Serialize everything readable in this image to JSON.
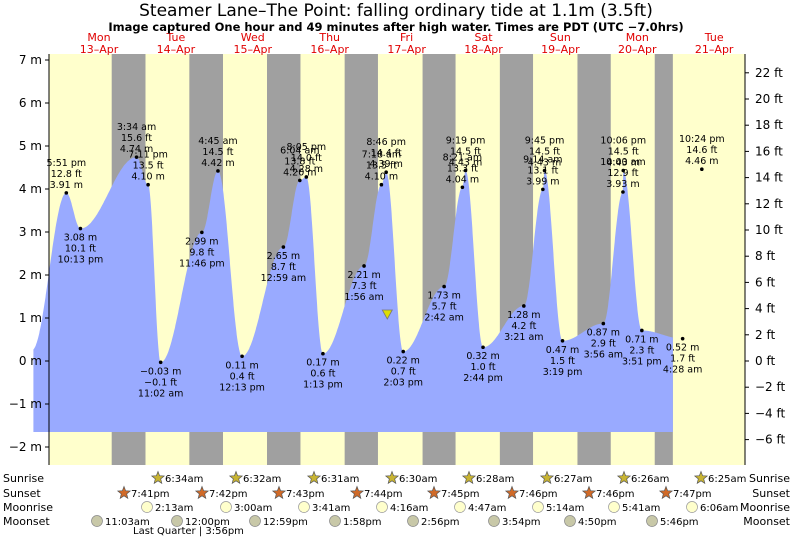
{
  "header": {
    "title": "Steamer Lane–The Point: falling  ordinary tide at 1.1m (3.5ft)",
    "subtitle": "Image captured One hour and 49 minutes after high water. Times are PDT (UTC −7.0hrs)"
  },
  "colors": {
    "day_bg": "#ffffcc",
    "night_bg": "#a0a0a0",
    "tide_fill": "#99aaff",
    "day_label": "#e00000",
    "current_marker": "#dddd00"
  },
  "chart_data": {
    "type": "area",
    "title": "Steamer Lane–The Point: falling  ordinary tide at 1.1m (3.5ft)",
    "x_range_days": [
      -0.18,
      8.06
    ],
    "ylim_m": [
      -2.3,
      7.3
    ],
    "ylim_ft": [
      -7.5,
      24
    ],
    "y_ticks_m": [
      -2,
      -1,
      0,
      1,
      2,
      3,
      4,
      5,
      6,
      7
    ],
    "y_tick_labels_m": [
      "−2 m",
      "−1 m",
      "0 m",
      "1 m",
      "2 m",
      "3 m",
      "4 m",
      "5 m",
      "6 m",
      "7 m"
    ],
    "y_ticks_ft": [
      -6,
      -4,
      -2,
      0,
      2,
      4,
      6,
      8,
      10,
      12,
      14,
      16,
      18,
      20,
      22
    ],
    "y_tick_labels_ft": [
      "−6 ft",
      "−4 ft",
      "−2 ft",
      "0 ft",
      "2 ft",
      "4 ft",
      "6 ft",
      "8 ft",
      "10 ft",
      "12 ft",
      "14 ft",
      "16 ft",
      "18 ft",
      "20 ft",
      "22 ft"
    ],
    "grid": false,
    "days": [
      {
        "dow": "Mon",
        "date": "13–Apr"
      },
      {
        "dow": "Tue",
        "date": "14–Apr"
      },
      {
        "dow": "Wed",
        "date": "15–Apr"
      },
      {
        "dow": "Thu",
        "date": "16–Apr"
      },
      {
        "dow": "Fri",
        "date": "17–Apr"
      },
      {
        "dow": "Sat",
        "date": "18–Apr"
      },
      {
        "dow": "Sun",
        "date": "19–Apr"
      },
      {
        "dow": "Mon",
        "date": "20–Apr"
      },
      {
        "dow": "Tue",
        "date": "21–Apr"
      }
    ],
    "nights": [
      {
        "start": 0.8285,
        "end": 1.264
      },
      {
        "start": 1.829,
        "end": 2.2628
      },
      {
        "start": 2.8299,
        "end": 3.2611
      },
      {
        "start": 3.8306,
        "end": 4.2597
      },
      {
        "start": 4.8347,
        "end": 5.2597
      },
      {
        "start": 5.8306,
        "end": 6.2583
      },
      {
        "start": 6.8306,
        "end": 7.2597
      },
      {
        "start": 7.8264,
        "end": 8.06
      }
    ],
    "extrema": [
      {
        "t": 0.2437,
        "m": 3.91,
        "lines": [
          "5:51 pm",
          "12.8 ft",
          "3.91 m"
        ],
        "above": true
      },
      {
        "t": 0.4257,
        "m": 3.08,
        "lines": [
          "3.08 m",
          "10.1 ft",
          "10:13 pm"
        ],
        "above": false
      },
      {
        "t": 1.1486,
        "m": 4.74,
        "lines": [
          "3:34 am",
          "15.6 ft",
          "4.74 m"
        ],
        "above": true
      },
      {
        "t": 1.4597,
        "m": -0.03,
        "lines": [
          "−0.03 m",
          "−0.1 ft",
          "11:02 am"
        ],
        "above": false
      },
      {
        "t": 1.2979,
        "m": 4.1,
        "lines": [
          "7:11 pm",
          "13.5 ft",
          "4.10 m"
        ],
        "above": true
      },
      {
        "t": 1.9903,
        "m": 2.99,
        "lines": [
          "2.99 m",
          "9.8 ft",
          "11:46 pm"
        ],
        "above": false
      },
      {
        "t": 2.1979,
        "m": 4.42,
        "lines": [
          "4:45 am",
          "14.5 ft",
          "4.42 m"
        ],
        "above": true
      },
      {
        "t": 2.509,
        "m": 0.11,
        "lines": [
          "0.11 m",
          "0.4 ft",
          "12:13 pm"
        ],
        "above": false
      },
      {
        "t": 3.3368,
        "m": 4.28,
        "lines": [
          "8:05 pm",
          "14.0 ft",
          "4.28 m"
        ],
        "above": true
      },
      {
        "t": 3.041,
        "m": 2.65,
        "lines": [
          "2.65 m",
          "8.7 ft",
          "12:59 am"
        ],
        "above": false
      },
      {
        "t": 3.2528,
        "m": 4.2,
        "lines": [
          "6:04 am",
          "13.8 ft",
          "4.20 m"
        ],
        "above": true
      },
      {
        "t": 3.5507,
        "m": 0.17,
        "lines": [
          "0.17 m",
          "0.6 ft",
          "1:13 pm"
        ],
        "above": false
      },
      {
        "t": 4.3653,
        "m": 4.39,
        "lines": [
          "8:46 pm",
          "14.4 ft",
          "4.39 m"
        ],
        "above": true
      },
      {
        "t": 4.0806,
        "m": 2.21,
        "lines": [
          "2.21 m",
          "7.3 ft",
          "1:56 am"
        ],
        "above": false
      },
      {
        "t": 4.3042,
        "m": 4.1,
        "lines": [
          "7:18 am",
          "13.5 ft",
          "4.10 m"
        ],
        "above": true
      },
      {
        "t": 4.5854,
        "m": 0.22,
        "lines": [
          "0.22 m",
          "0.7 ft",
          "2:03 pm"
        ],
        "above": false
      },
      {
        "t": 5.3882,
        "m": 4.43,
        "lines": [
          "9:19 pm",
          "14.5 ft",
          "4.43 m"
        ],
        "above": true
      },
      {
        "t": 5.1125,
        "m": 1.73,
        "lines": [
          "1.73 m",
          "5.7 ft",
          "2:42 am"
        ],
        "above": false
      },
      {
        "t": 5.3479,
        "m": 4.04,
        "lines": [
          "8:21 am",
          "13.3 ft",
          "4.04 m"
        ],
        "above": true
      },
      {
        "t": 5.6139,
        "m": 0.32,
        "lines": [
          "0.32 m",
          "1.0 ft",
          "2:44 pm"
        ],
        "above": false
      },
      {
        "t": 6.4063,
        "m": 4.43,
        "lines": [
          "9:45 pm",
          "14.5 ft",
          "4.43 m"
        ],
        "above": true
      },
      {
        "t": 6.1396,
        "m": 1.28,
        "lines": [
          "1.28 m",
          "4.2 ft",
          "3:21 am"
        ],
        "above": false
      },
      {
        "t": 6.3847,
        "m": 3.99,
        "lines": [
          "9:14 am",
          "13.1 ft",
          "3.99 m"
        ],
        "above": true
      },
      {
        "t": 6.6382,
        "m": 0.47,
        "lines": [
          "0.47 m",
          "1.5 ft",
          "3:19 pm"
        ],
        "above": false
      },
      {
        "t": 7.4208,
        "m": 4.43,
        "lines": [
          "10:06 pm",
          "14.5 ft",
          "4.43 m"
        ],
        "above": true
      },
      {
        "t": 7.1639,
        "m": 0.87,
        "lines": [
          "0.87 m",
          "2.9 ft",
          "3:56 am"
        ],
        "above": false
      },
      {
        "t": 7.4167,
        "m": 3.93,
        "lines": [
          "10:00 am",
          "12.9 ft",
          "3.93 m"
        ],
        "above": true
      },
      {
        "t": 7.6604,
        "m": 0.71,
        "lines": [
          "0.71 m",
          "2.3 ft",
          "3:51 pm"
        ],
        "above": false
      },
      {
        "t": 8.4333,
        "m": 4.46,
        "lines": [
          "10:24 pm",
          "14.6 ft",
          "4.46 m"
        ],
        "above": true
      },
      {
        "t": 8.1861,
        "m": 0.52,
        "lines": [
          "0.52 m",
          "1.7 ft",
          "4:28 am"
        ],
        "above": false
      }
    ],
    "current": {
      "t": 4.38,
      "m": 1.07
    }
  },
  "bottom": {
    "row_labels": [
      "Sunrise",
      "Sunset",
      "Moonrise",
      "Moonset"
    ],
    "sunrise": [
      "6:34am",
      "6:32am",
      "6:31am",
      "6:30am",
      "6:28am",
      "6:27am",
      "6:26am",
      "6:25am"
    ],
    "sunset": [
      "7:41pm",
      "7:42pm",
      "7:43pm",
      "7:44pm",
      "7:45pm",
      "7:46pm",
      "7:46pm",
      "7:47pm"
    ],
    "moonrise": [
      "2:13am",
      "3:00am",
      "3:41am",
      "4:16am",
      "4:47am",
      "5:14am",
      "5:41am",
      "6:06am"
    ],
    "moonset": [
      "11:03am",
      "12:00pm",
      "12:59pm",
      "1:58pm",
      "2:56pm",
      "3:54pm",
      "4:50pm",
      "5:46pm"
    ],
    "moon_phase": "Last Quarter | 3:56pm"
  }
}
